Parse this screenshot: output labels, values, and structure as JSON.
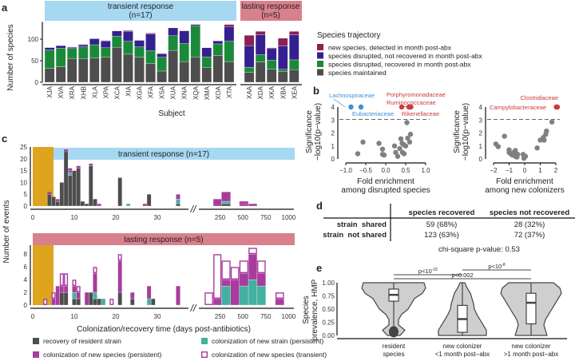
{
  "panel_labels": [
    "a",
    "b",
    "c",
    "d",
    "e"
  ],
  "colors": {
    "maintained": "#4d4d4d",
    "recovered": "#1a8a3a",
    "not_recovered": "#35208f",
    "new": "#8e1f52",
    "transient_strip": "#a6d8f2",
    "lasting_strip": "#d9808d",
    "antibiotic": "#dea41e",
    "resident": "#4d4d4d",
    "new_strain": "#44b0a0",
    "new_species": "#a83c9c",
    "red": "#c93a3a",
    "blue": "#3d8fd8",
    "point": "#808080",
    "violin": "#cfcfcf"
  },
  "chart_data": [
    {
      "type": "bar",
      "stacked": true,
      "panel": "a",
      "groups": [
        {
          "label": "transient response\n(n=17)",
          "line1": "transient response",
          "line2": "(n=17)"
        },
        {
          "label": "lasting response\n(n=5)",
          "line1": "lasting response",
          "line2": "(n=5)"
        }
      ],
      "xlabel": "Subject",
      "ylabel": "Number of species",
      "yticks": [
        0,
        50,
        100
      ],
      "ylim": [
        0,
        140
      ],
      "legend_title": "Species trajectory",
      "series_names": [
        "new species, detected in month post-abx",
        "species disrupted, not recovered in month post-abx",
        "species disrupted, recovered in month post-abx",
        "species maintained"
      ],
      "categories": [
        "XJA",
        "XVA",
        "XRA",
        "XHB",
        "XLA",
        "XPA",
        "XCA",
        "XIA",
        "XGA",
        "XFA",
        "XSA",
        "XUA",
        "XNA",
        "XQA",
        "XMA",
        "XOA",
        "XTA",
        "XAA",
        "XDA",
        "XKA",
        "XBA",
        "XEA"
      ],
      "group_of": [
        0,
        0,
        0,
        0,
        0,
        0,
        0,
        0,
        0,
        0,
        0,
        0,
        0,
        0,
        0,
        0,
        0,
        1,
        1,
        1,
        1,
        1
      ],
      "values": {
        "maintained": [
          32,
          36,
          55,
          55,
          56,
          58,
          81,
          65,
          58,
          43,
          26,
          74,
          48,
          59,
          34,
          62,
          48,
          23,
          47,
          30,
          25,
          29
        ],
        "recovered": [
          43,
          43,
          23,
          27,
          31,
          22,
          26,
          30,
          24,
          30,
          32,
          34,
          42,
          72,
          25,
          27,
          47,
          12,
          17,
          21,
          5,
          23
        ],
        "not_recovered": [
          5,
          6,
          3,
          5,
          14,
          16,
          12,
          23,
          15,
          39,
          8,
          18,
          29,
          3,
          21,
          7,
          34,
          50,
          46,
          27,
          54,
          58
        ],
        "new": [
          1,
          0,
          1,
          1,
          0,
          1,
          0,
          2,
          1,
          2,
          1,
          0,
          1,
          0,
          0,
          0,
          5,
          24,
          8,
          2,
          18,
          8
        ]
      }
    },
    {
      "type": "scatter",
      "panel": "b-left",
      "xlabel1": "Fold enrichment",
      "xlabel2": "among disrupted species",
      "ylabel1": "Significance",
      "ylabel2": "−log10(p−value)",
      "xticks": [
        -1.0,
        -0.5,
        0.0,
        0.5,
        1.0
      ],
      "xtick_labels": [
        "−1.0",
        "−0.5",
        "0.0",
        "0.5",
        "1.0"
      ],
      "yticks": [
        0,
        1,
        2,
        3,
        4
      ],
      "threshold": 3.05,
      "labeled": [
        {
          "name": "Lachnospiraceae",
          "x": -0.87,
          "y": 4,
          "color": "blue"
        },
        {
          "name": "Eubacteriaceae",
          "x": -0.62,
          "y": 4,
          "color": "blue"
        },
        {
          "name": "Porphyromonadaceae",
          "x": 0.4,
          "y": 4,
          "color": "red"
        },
        {
          "name": "Ruminococcaceae",
          "x": 0.58,
          "y": 4,
          "color": "red"
        },
        {
          "name": "Rikenellaceae",
          "x": 0.63,
          "y": 4,
          "color": "red"
        }
      ],
      "points": [
        [
          -0.7,
          0.4
        ],
        [
          -0.57,
          1.3
        ],
        [
          -0.17,
          1.2
        ],
        [
          -0.08,
          0.75
        ],
        [
          -0.08,
          0.35
        ],
        [
          -0.04,
          0.3
        ],
        [
          0.22,
          1.0
        ],
        [
          0.25,
          0.5
        ],
        [
          0.3,
          0.2
        ],
        [
          0.35,
          0.8
        ],
        [
          0.38,
          1.55
        ],
        [
          0.41,
          1.2
        ],
        [
          0.42,
          0.5
        ],
        [
          0.46,
          0.4
        ],
        [
          0.5,
          1.0
        ],
        [
          0.53,
          2.8
        ],
        [
          0.55,
          1.6
        ],
        [
          0.6,
          1.3
        ],
        [
          0.62,
          1.9
        ],
        [
          0.45,
          1.1
        ]
      ]
    },
    {
      "type": "scatter",
      "panel": "b-right",
      "xlabel1": "Fold enrichment",
      "xlabel2": "among new colonizers",
      "ylabel1": "Significance",
      "ylabel2": "−log10(p−value)",
      "xticks": [
        -2,
        -1,
        0,
        1,
        2
      ],
      "xtick_labels": [
        "−2",
        "−1",
        "0",
        "1",
        "2"
      ],
      "yticks": [
        0,
        1,
        2,
        3,
        4
      ],
      "threshold": 3.05,
      "labeled": [
        {
          "name": "Clostridiaceae",
          "x": 2.1,
          "y": 4,
          "color": "red"
        },
        {
          "name": "Campylobacteraceae",
          "x": 2.03,
          "y": 4,
          "color": "red"
        }
      ],
      "points": [
        [
          -1.85,
          1.15
        ],
        [
          -1.7,
          0.95
        ],
        [
          -1.3,
          1.75
        ],
        [
          -1.0,
          0.7
        ],
        [
          -1.0,
          0.5
        ],
        [
          -0.9,
          0.4
        ],
        [
          -0.8,
          0.3
        ],
        [
          -0.7,
          0.5
        ],
        [
          -0.6,
          0.65
        ],
        [
          -0.6,
          0.2
        ],
        [
          -0.5,
          0.15
        ],
        [
          -0.45,
          0.35
        ],
        [
          -0.1,
          0.35
        ],
        [
          -0.05,
          0.05
        ],
        [
          0.05,
          0.2
        ],
        [
          0.8,
          0.85
        ],
        [
          1.0,
          1.45
        ],
        [
          1.2,
          1.65
        ],
        [
          1.25,
          1.45
        ],
        [
          1.35,
          1.9
        ],
        [
          1.4,
          2.15
        ],
        [
          1.75,
          2.85
        ]
      ]
    },
    {
      "type": "bar",
      "stacked": true,
      "panel": "c",
      "xlabel": "Colonization/recovery time (days post-antibiotics)",
      "ylabel": "Number of events",
      "xticks_left": [
        0,
        10,
        20,
        30
      ],
      "xticks_right": [
        250,
        500,
        750,
        1000
      ],
      "antibiotic_window": [
        0,
        5
      ],
      "series_names": [
        "recovery of resident strain",
        "colonization of new strain (persistent)",
        "colonization of new species (persistent)",
        "colonization of new species (transient)"
      ],
      "facets": [
        {
          "title": "transient response (n=17)",
          "yticks": [
            0,
            5,
            10,
            15,
            20,
            25
          ],
          "ymax": 25,
          "daily": [
            [
              4,
              5,
              0,
              0,
              1
            ],
            [
              5,
              4,
              0,
              0,
              0
            ],
            [
              6,
              2,
              0,
              1,
              0
            ],
            [
              7,
              10,
              0,
              0,
              0
            ],
            [
              8,
              23,
              0,
              0,
              1
            ],
            [
              9,
              13,
              1,
              1,
              1
            ],
            [
              10,
              15,
              0,
              0,
              0
            ],
            [
              11,
              16,
              0,
              0,
              1
            ],
            [
              12,
              2,
              0,
              0,
              0
            ],
            [
              13,
              1,
              0,
              0,
              0
            ],
            [
              14,
              17,
              0,
              1,
              0
            ],
            [
              15,
              3,
              0,
              0,
              0
            ],
            [
              16,
              0,
              0,
              1,
              0
            ],
            [
              21,
              12,
              0,
              0,
              0
            ],
            [
              23,
              0,
              1,
              0,
              0
            ],
            [
              27,
              0,
              0,
              1,
              0
            ],
            [
              28,
              5,
              0,
              0,
              0
            ],
            [
              35,
              1,
              2,
              2,
              0
            ]
          ],
          "binned": [
            [
              175,
              265,
              0,
              0,
              3,
              0
            ],
            [
              265,
              365,
              1,
              1,
              4,
              0
            ],
            [
              460,
              560,
              0,
              0,
              1,
              1
            ],
            [
              560,
              655,
              0,
              0,
              1,
              0
            ]
          ]
        },
        {
          "title": "lasting response (n=5)",
          "yticks": [
            0,
            2,
            4,
            6,
            8
          ],
          "ymax": 9.4,
          "daily": [
            [
              3,
              0,
              0,
              0,
              1
            ],
            [
              5,
              0,
              0,
              1,
              1
            ],
            [
              6,
              0,
              0,
              3,
              0
            ],
            [
              7,
              2,
              0,
              1,
              2
            ],
            [
              8,
              2,
              0,
              1,
              2
            ],
            [
              10,
              1,
              1,
              1,
              1
            ],
            [
              11,
              1,
              0,
              1,
              1
            ],
            [
              13,
              0,
              0,
              2,
              0
            ],
            [
              14,
              2,
              0,
              0,
              0
            ],
            [
              15,
              1,
              1,
              3,
              1
            ],
            [
              16,
              1,
              0,
              0,
              0
            ],
            [
              17,
              0,
              1,
              0,
              0
            ],
            [
              19,
              0,
              0,
              0,
              1
            ],
            [
              21,
              2,
              0,
              5,
              1
            ],
            [
              24,
              1,
              0,
              1,
              0
            ],
            [
              28,
              0,
              1,
              2,
              0
            ],
            [
              29,
              1,
              0,
              0,
              0
            ],
            [
              35,
              0,
              0,
              3,
              0
            ]
          ],
          "binned": [
            [
              80,
              175,
              0,
              0,
              0,
              2
            ],
            [
              175,
              265,
              0,
              0,
              1,
              7
            ],
            [
              265,
              365,
              0,
              3,
              1,
              3
            ],
            [
              365,
              460,
              0,
              0,
              4,
              2
            ],
            [
              460,
              560,
              0,
              3,
              2,
              2
            ],
            [
              560,
              655,
              0,
              4,
              4,
              1
            ],
            [
              655,
              750,
              0,
              3,
              2,
              2
            ],
            [
              855,
              950,
              0,
              0,
              1,
              1
            ]
          ]
        }
      ]
    },
    {
      "type": "table",
      "panel": "d",
      "columns": [
        "",
        "species recovered",
        "species not recovered"
      ],
      "rows": [
        [
          "strain  shared",
          "59 (68%)",
          "28 (32%)"
        ],
        [
          "strain  not shared",
          "123 (63%)",
          "72 (37%)"
        ]
      ],
      "note": "chi-square p-value: 0.53"
    },
    {
      "type": "violin",
      "panel": "e",
      "ylabel1": "Species",
      "ylabel2": "prevalence, HMP",
      "yticks": [
        0,
        0.25,
        0.5,
        0.75,
        1.0
      ],
      "ytick_labels": [
        "0.00",
        "0.25",
        "0.50",
        "0.75",
        "1.00"
      ],
      "groups": [
        {
          "line1": "resident",
          "line2": "species",
          "q1": 0.65,
          "median": 0.77,
          "q3": 0.88,
          "min": 0.0,
          "max": 1.0
        },
        {
          "line1": "new colonizer",
          "line2": "<1 month post−abx",
          "q1": 0.06,
          "median": 0.31,
          "q3": 0.57,
          "min": 0.0,
          "max": 1.0
        },
        {
          "line1": "new colonizer",
          "line2": ">1 month post−abx",
          "q1": 0.22,
          "median": 0.62,
          "q3": 0.8,
          "min": 0.0,
          "max": 1.0
        }
      ],
      "comparisons": [
        {
          "from": 0,
          "to": 1,
          "label": "p<10",
          "exp": "-15"
        },
        {
          "from": 1,
          "to": 2,
          "label": "p<10",
          "exp": "-8"
        },
        {
          "from": 0,
          "to": 2,
          "label": "p<0.002",
          "exp": ""
        }
      ]
    }
  ]
}
